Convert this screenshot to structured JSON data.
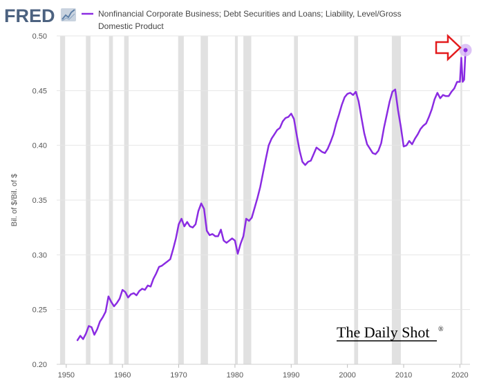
{
  "header": {
    "logo_text": "FRED",
    "logo_icon": "trend-graph-icon"
  },
  "colors": {
    "series": "#8a2be2",
    "recession": "#e1e1e1",
    "grid": "#e6e6e6",
    "logo": "#4c6280",
    "arrow": "#e31a1c",
    "marker_halo": "#d7b8f5"
  },
  "chart_data": {
    "type": "line",
    "title": "",
    "legend": [
      "Nonfinancial Corporate Business; Debt Securities and Loans; Liability, Level/Gross",
      "Domestic Product"
    ],
    "legend_position": "top-left",
    "xlabel": "",
    "ylabel": "Bil. of $/Bil. of $",
    "xlim": [
      1948.3,
      2021.8
    ],
    "ylim": [
      0.2,
      0.5
    ],
    "xticks": [
      1950,
      1960,
      1970,
      1980,
      1990,
      2000,
      2010,
      2020
    ],
    "xtick_labels": [
      "1950",
      "1960",
      "1970",
      "1980",
      "1990",
      "2000",
      "2010",
      "2020"
    ],
    "yticks": [
      0.2,
      0.25,
      0.3,
      0.35,
      0.4,
      0.45,
      0.5
    ],
    "ytick_labels": [
      "0.20",
      "0.25",
      "0.30",
      "0.35",
      "0.40",
      "0.45",
      "0.50"
    ],
    "grid": "horizontal",
    "recessions": [
      [
        1948.9,
        1949.8
      ],
      [
        1953.5,
        1954.3
      ],
      [
        1957.6,
        1958.3
      ],
      [
        1960.3,
        1961.1
      ],
      [
        1969.9,
        1970.9
      ],
      [
        1973.9,
        1975.2
      ],
      [
        1980.0,
        1980.5
      ],
      [
        1981.5,
        1982.9
      ],
      [
        1990.5,
        1991.2
      ],
      [
        2001.2,
        2001.9
      ],
      [
        2007.9,
        2009.5
      ],
      [
        2020.1,
        2020.4
      ]
    ],
    "series": [
      {
        "name": "Nonfinancial Corporate Business; Debt Securities and Loans; Liability, Level/Gross Domestic Product",
        "x": [
          1952.0,
          1952.5,
          1953.0,
          1953.5,
          1954.0,
          1954.5,
          1955.0,
          1955.5,
          1956.0,
          1956.5,
          1957.0,
          1957.5,
          1958.0,
          1958.5,
          1959.0,
          1959.5,
          1960.0,
          1960.5,
          1961.0,
          1961.5,
          1962.0,
          1962.5,
          1963.0,
          1963.5,
          1964.0,
          1964.5,
          1965.0,
          1965.5,
          1966.0,
          1966.5,
          1967.0,
          1967.5,
          1968.0,
          1968.5,
          1969.0,
          1969.5,
          1970.0,
          1970.5,
          1971.0,
          1971.5,
          1972.0,
          1972.5,
          1973.0,
          1973.5,
          1974.0,
          1974.5,
          1975.0,
          1975.5,
          1976.0,
          1976.5,
          1977.0,
          1977.5,
          1978.0,
          1978.5,
          1979.0,
          1979.5,
          1980.0,
          1980.5,
          1981.0,
          1981.5,
          1982.0,
          1982.5,
          1983.0,
          1983.5,
          1984.0,
          1984.5,
          1985.0,
          1985.5,
          1986.0,
          1986.5,
          1987.0,
          1987.5,
          1988.0,
          1988.5,
          1989.0,
          1989.5,
          1990.0,
          1990.5,
          1991.0,
          1991.5,
          1992.0,
          1992.5,
          1993.0,
          1993.5,
          1994.0,
          1994.5,
          1995.0,
          1995.5,
          1996.0,
          1996.5,
          1997.0,
          1997.5,
          1998.0,
          1998.5,
          1999.0,
          1999.5,
          2000.0,
          2000.5,
          2001.0,
          2001.5,
          2002.0,
          2002.5,
          2003.0,
          2003.5,
          2004.0,
          2004.5,
          2005.0,
          2005.5,
          2006.0,
          2006.5,
          2007.0,
          2007.5,
          2008.0,
          2008.5,
          2009.0,
          2009.5,
          2010.0,
          2010.5,
          2011.0,
          2011.5,
          2012.0,
          2012.5,
          2013.0,
          2013.5,
          2014.0,
          2014.5,
          2015.0,
          2015.5,
          2016.0,
          2016.5,
          2017.0,
          2017.5,
          2018.0,
          2018.5,
          2019.0,
          2019.5,
          2020.0,
          2020.25,
          2020.5,
          2020.75,
          2021.0
        ],
        "values": [
          0.222,
          0.226,
          0.223,
          0.228,
          0.235,
          0.234,
          0.227,
          0.232,
          0.239,
          0.243,
          0.248,
          0.262,
          0.257,
          0.253,
          0.256,
          0.26,
          0.268,
          0.266,
          0.261,
          0.264,
          0.265,
          0.263,
          0.267,
          0.269,
          0.268,
          0.272,
          0.271,
          0.278,
          0.283,
          0.289,
          0.29,
          0.292,
          0.294,
          0.296,
          0.305,
          0.315,
          0.328,
          0.333,
          0.326,
          0.33,
          0.326,
          0.325,
          0.328,
          0.34,
          0.347,
          0.342,
          0.322,
          0.318,
          0.319,
          0.317,
          0.317,
          0.323,
          0.313,
          0.311,
          0.313,
          0.315,
          0.313,
          0.301,
          0.31,
          0.317,
          0.333,
          0.331,
          0.334,
          0.343,
          0.352,
          0.362,
          0.375,
          0.388,
          0.4,
          0.406,
          0.41,
          0.414,
          0.416,
          0.422,
          0.425,
          0.426,
          0.429,
          0.424,
          0.409,
          0.395,
          0.385,
          0.382,
          0.385,
          0.386,
          0.392,
          0.398,
          0.396,
          0.394,
          0.393,
          0.397,
          0.403,
          0.41,
          0.42,
          0.428,
          0.437,
          0.444,
          0.447,
          0.448,
          0.446,
          0.449,
          0.44,
          0.425,
          0.411,
          0.401,
          0.397,
          0.393,
          0.392,
          0.395,
          0.402,
          0.416,
          0.428,
          0.44,
          0.449,
          0.451,
          0.432,
          0.417,
          0.399,
          0.4,
          0.404,
          0.401,
          0.406,
          0.41,
          0.415,
          0.418,
          0.42,
          0.426,
          0.433,
          0.442,
          0.448,
          0.443,
          0.446,
          0.445,
          0.445,
          0.449,
          0.452,
          0.458,
          0.458,
          0.48,
          0.458,
          0.46,
          0.487
        ]
      }
    ]
  },
  "watermark": {
    "text": "The Daily Shot",
    "registered": "®"
  }
}
